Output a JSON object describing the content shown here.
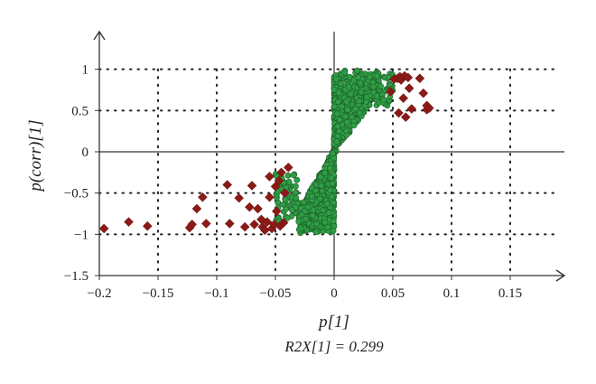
{
  "chart_data": {
    "type": "scatter",
    "xlabel": "p[1]",
    "ylabel": "p(corr)[1]",
    "annotation": "R2X[1] = 0.299",
    "xlim": [
      -0.2,
      0.2
    ],
    "ylim": [
      -1.5,
      1.5
    ],
    "xticks": [
      -0.2,
      -0.15,
      -0.1,
      -0.05,
      0,
      0.05,
      0.1,
      0.15
    ],
    "xtick_labels": [
      "−0.2",
      "−0.15",
      "−0.1",
      "−0.05",
      "0",
      "0.05",
      "0.1",
      "0.15"
    ],
    "yticks": [
      -1.5,
      -1,
      -0.5,
      0,
      0.5,
      1
    ],
    "ytick_labels": [
      "−1.5",
      "−1",
      "−0.5",
      "0",
      "0.5",
      "1"
    ],
    "grid": "dotted",
    "colors": {
      "diamond": "#8b1a16",
      "circle": "#2f9e45",
      "circle_edge": "#1d5e2a",
      "axis": "#333333",
      "grid": "#222222"
    },
    "series": [
      {
        "marker": "diamond",
        "points": [
          [
            -0.196,
            -0.93
          ],
          [
            -0.175,
            -0.85
          ],
          [
            -0.159,
            -0.9
          ],
          [
            -0.123,
            -0.92
          ],
          [
            -0.121,
            -0.88
          ],
          [
            -0.117,
            -0.69
          ],
          [
            -0.112,
            -0.55
          ],
          [
            -0.109,
            -0.87
          ],
          [
            -0.091,
            -0.4
          ],
          [
            -0.089,
            -0.87
          ],
          [
            -0.081,
            -0.56
          ],
          [
            -0.076,
            -0.91
          ],
          [
            -0.072,
            -0.67
          ],
          [
            -0.07,
            -0.41
          ],
          [
            -0.068,
            -0.88
          ],
          [
            -0.065,
            -0.69
          ],
          [
            -0.062,
            -0.82
          ],
          [
            -0.061,
            -0.91
          ],
          [
            -0.059,
            -0.95
          ],
          [
            -0.057,
            -0.85
          ],
          [
            -0.055,
            -0.55
          ],
          [
            -0.055,
            -0.3
          ],
          [
            -0.053,
            -0.93
          ],
          [
            -0.051,
            -0.88
          ],
          [
            -0.05,
            -0.42
          ],
          [
            -0.049,
            -0.72
          ],
          [
            -0.047,
            -0.35
          ],
          [
            -0.046,
            -0.9
          ],
          [
            -0.045,
            -0.25
          ],
          [
            -0.043,
            -0.86
          ],
          [
            -0.042,
            -0.5
          ],
          [
            -0.039,
            -0.19
          ],
          [
            0.048,
            0.73
          ],
          [
            0.051,
            0.88
          ],
          [
            0.054,
            0.89
          ],
          [
            0.055,
            0.47
          ],
          [
            0.056,
            0.91
          ],
          [
            0.057,
            0.87
          ],
          [
            0.059,
            0.65
          ],
          [
            0.06,
            0.92
          ],
          [
            0.061,
            0.42
          ],
          [
            0.063,
            0.9
          ],
          [
            0.064,
            0.77
          ],
          [
            0.066,
            0.52
          ],
          [
            0.073,
            0.89
          ],
          [
            0.076,
            0.71
          ],
          [
            0.079,
            0.51
          ],
          [
            0.079,
            0.56
          ],
          [
            0.081,
            0.53
          ]
        ]
      },
      {
        "marker": "circle",
        "generated_from": {
          "seed": 7,
          "count_right": 700,
          "count_left": 750,
          "count_right_sparse": 90,
          "count_left_sparse": 70
        }
      }
    ]
  }
}
